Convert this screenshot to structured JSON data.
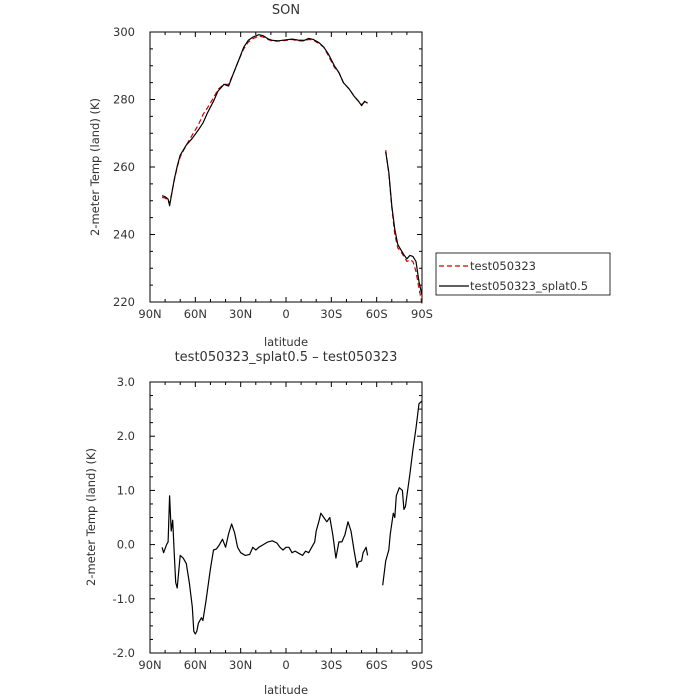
{
  "chart_data": [
    {
      "type": "line",
      "title": "SON",
      "xlabel": "latitude",
      "ylabel": "2-meter Temp (land) (K)",
      "ylim": [
        220,
        300
      ],
      "xlim": [
        90,
        -90
      ],
      "x_tick_values": [
        90,
        60,
        30,
        0,
        -30,
        -60,
        -90
      ],
      "x_tick_labels": [
        "90N",
        "60N",
        "30N",
        "0",
        "30S",
        "60S",
        "90S"
      ],
      "y_tick_values": [
        220,
        240,
        260,
        280,
        300
      ],
      "y_tick_labels": [
        "220",
        "240",
        "260",
        "280",
        "300"
      ],
      "legend": {
        "placement": "right",
        "entries": [
          "test050323",
          "test050323_splat0.5"
        ]
      },
      "series": [
        {
          "name": "test050323",
          "color": "#cc0000",
          "dash": "dashed",
          "segments": [
            [
              [
                82,
                251.0
              ],
              [
                80,
                250.8
              ],
              [
                78,
                250.0
              ],
              [
                77,
                249.2
              ],
              [
                76,
                251.5
              ],
              [
                74,
                256.0
              ],
              [
                72,
                260.0
              ],
              [
                70,
                263.0
              ],
              [
                66,
                266.5
              ],
              [
                62,
                269.5
              ],
              [
                58,
                272.5
              ],
              [
                55,
                275.5
              ],
              [
                52,
                277.5
              ],
              [
                48,
                280.5
              ],
              [
                45,
                283.0
              ],
              [
                41,
                284.5
              ],
              [
                38,
                284.5
              ],
              [
                35,
                287.5
              ],
              [
                31,
                292.0
              ],
              [
                28,
                295.0
              ],
              [
                25,
                297.0
              ],
              [
                22,
                298.0
              ],
              [
                18,
                298.8
              ],
              [
                15,
                298.5
              ],
              [
                12,
                297.8
              ],
              [
                9,
                297.3
              ],
              [
                5,
                297.3
              ],
              [
                0,
                297.5
              ],
              [
                -4,
                297.8
              ],
              [
                -8,
                297.4
              ],
              [
                -12,
                297.3
              ],
              [
                -15,
                297.8
              ],
              [
                -18,
                297.6
              ],
              [
                -22,
                296.5
              ],
              [
                -25,
                295.5
              ],
              [
                -28,
                293.0
              ],
              [
                -32,
                289.5
              ],
              [
                -35,
                288.0
              ],
              [
                -38,
                285.0
              ],
              [
                -42,
                283.0
              ],
              [
                -45,
                281.0
              ],
              [
                -48,
                279.5
              ],
              [
                -50,
                278.5
              ],
              [
                -52,
                279.2
              ],
              [
                -54,
                279.0
              ]
            ],
            [
              [
                -66,
                265.0
              ],
              [
                -68,
                258.0
              ],
              [
                -70,
                248.0
              ],
              [
                -72,
                240.0
              ],
              [
                -74,
                236.0
              ],
              [
                -76,
                235.0
              ],
              [
                -78,
                233.5
              ],
              [
                -80,
                232.0
              ],
              [
                -82,
                232.5
              ],
              [
                -84,
                232.0
              ],
              [
                -86,
                229.0
              ],
              [
                -88,
                224.0
              ],
              [
                -90,
                219.5
              ]
            ]
          ]
        },
        {
          "name": "test050323_splat0.5",
          "color": "#000000",
          "dash": "solid",
          "segments": [
            [
              [
                82,
                251.5
              ],
              [
                80,
                251.2
              ],
              [
                78,
                250.5
              ],
              [
                77,
                248.5
              ],
              [
                76,
                251.2
              ],
              [
                74,
                256.2
              ],
              [
                72,
                260.2
              ],
              [
                70,
                263.5
              ],
              [
                66,
                266.5
              ],
              [
                62,
                268.5
              ],
              [
                58,
                271.0
              ],
              [
                55,
                273.0
              ],
              [
                52,
                276.0
              ],
              [
                48,
                279.5
              ],
              [
                45,
                282.5
              ],
              [
                41,
                284.5
              ],
              [
                38,
                284.0
              ],
              [
                35,
                287.5
              ],
              [
                31,
                292.0
              ],
              [
                28,
                295.5
              ],
              [
                25,
                297.5
              ],
              [
                22,
                298.5
              ],
              [
                18,
                299.2
              ],
              [
                15,
                298.9
              ],
              [
                12,
                298.0
              ],
              [
                9,
                297.5
              ],
              [
                5,
                297.4
              ],
              [
                0,
                297.7
              ],
              [
                -4,
                297.9
              ],
              [
                -8,
                297.6
              ],
              [
                -12,
                297.5
              ],
              [
                -15,
                298.1
              ],
              [
                -18,
                297.8
              ],
              [
                -22,
                296.8
              ],
              [
                -25,
                295.5
              ],
              [
                -28,
                293.5
              ],
              [
                -32,
                290.0
              ],
              [
                -35,
                288.0
              ],
              [
                -38,
                285.0
              ],
              [
                -42,
                283.0
              ],
              [
                -45,
                281.0
              ],
              [
                -48,
                279.5
              ],
              [
                -50,
                278.2
              ],
              [
                -52,
                279.5
              ],
              [
                -54,
                278.9
              ]
            ],
            [
              [
                -66,
                264.5
              ],
              [
                -68,
                258.5
              ],
              [
                -70,
                248.5
              ],
              [
                -72,
                241.5
              ],
              [
                -74,
                237.0
              ],
              [
                -76,
                235.5
              ],
              [
                -78,
                234.0
              ],
              [
                -80,
                232.8
              ],
              [
                -82,
                233.8
              ],
              [
                -84,
                233.5
              ],
              [
                -86,
                232.0
              ],
              [
                -88,
                226.0
              ],
              [
                -90,
                222.0
              ]
            ]
          ]
        }
      ]
    },
    {
      "type": "line",
      "title": "test050323_splat0.5 – test050323",
      "xlabel": "latitude",
      "ylabel": "2-meter Temp (land) (K)",
      "ylim": [
        -2.0,
        3.0
      ],
      "xlim": [
        90,
        -90
      ],
      "x_tick_values": [
        90,
        60,
        30,
        0,
        -30,
        -60,
        -90
      ],
      "x_tick_labels": [
        "90N",
        "60N",
        "30N",
        "0",
        "30S",
        "60S",
        "90S"
      ],
      "y_tick_values": [
        -2.0,
        -1.0,
        0.0,
        1.0,
        2.0,
        3.0
      ],
      "y_tick_labels": [
        "-2.0",
        "-1.0",
        "0.0",
        "1.0",
        "2.0",
        "3.0"
      ],
      "series": [
        {
          "color": "#000000",
          "dash": "solid",
          "segments": [
            [
              [
                82,
                -0.05
              ],
              [
                81,
                -0.15
              ],
              [
                79,
                0.0
              ],
              [
                78,
                0.05
              ],
              [
                77,
                0.9
              ],
              [
                76,
                0.25
              ],
              [
                75,
                0.45
              ],
              [
                74,
                -0.15
              ],
              [
                73,
                -0.7
              ],
              [
                72,
                -0.8
              ],
              [
                71,
                -0.5
              ],
              [
                70,
                -0.2
              ],
              [
                68,
                -0.25
              ],
              [
                66,
                -0.35
              ],
              [
                64,
                -0.7
              ],
              [
                62,
                -1.15
              ],
              [
                61,
                -1.6
              ],
              [
                60,
                -1.65
              ],
              [
                59,
                -1.6
              ],
              [
                58,
                -1.45
              ],
              [
                56,
                -1.35
              ],
              [
                55,
                -1.4
              ],
              [
                53,
                -1.05
              ],
              [
                50,
                -0.45
              ],
              [
                48,
                -0.1
              ],
              [
                46,
                -0.08
              ],
              [
                44,
                0.0
              ],
              [
                42,
                0.1
              ],
              [
                40,
                -0.05
              ],
              [
                38,
                0.2
              ],
              [
                36,
                0.38
              ],
              [
                34,
                0.22
              ],
              [
                32,
                -0.05
              ],
              [
                30,
                -0.15
              ],
              [
                27,
                -0.2
              ],
              [
                24,
                -0.18
              ],
              [
                22,
                -0.05
              ],
              [
                20,
                -0.1
              ],
              [
                18,
                -0.05
              ],
              [
                15,
                0.0
              ],
              [
                12,
                0.05
              ],
              [
                9,
                0.07
              ],
              [
                6,
                0.03
              ],
              [
                4,
                -0.05
              ],
              [
                2,
                -0.1
              ],
              [
                0,
                -0.05
              ],
              [
                -2,
                -0.05
              ],
              [
                -4,
                -0.15
              ],
              [
                -6,
                -0.12
              ],
              [
                -9,
                -0.17
              ],
              [
                -11,
                -0.2
              ],
              [
                -13,
                -0.12
              ],
              [
                -15,
                -0.15
              ],
              [
                -17,
                -0.05
              ],
              [
                -19,
                0.05
              ],
              [
                -20,
                0.25
              ],
              [
                -22,
                0.45
              ],
              [
                -23,
                0.58
              ],
              [
                -25,
                0.5
              ],
              [
                -27,
                0.42
              ],
              [
                -29,
                0.5
              ],
              [
                -31,
                0.18
              ],
              [
                -33,
                -0.25
              ],
              [
                -35,
                0.05
              ],
              [
                -37,
                0.05
              ],
              [
                -39,
                0.18
              ],
              [
                -41,
                0.42
              ],
              [
                -43,
                0.25
              ],
              [
                -45,
                -0.1
              ],
              [
                -47,
                -0.42
              ],
              [
                -48,
                -0.32
              ],
              [
                -50,
                -0.3
              ],
              [
                -51,
                -0.15
              ],
              [
                -53,
                -0.05
              ],
              [
                -54,
                -0.2
              ]
            ],
            [
              [
                -64,
                -0.75
              ],
              [
                -66,
                -0.3
              ],
              [
                -68,
                -0.1
              ],
              [
                -69,
                0.2
              ],
              [
                -71,
                0.58
              ],
              [
                -72,
                0.5
              ],
              [
                -73,
                0.9
              ],
              [
                -75,
                1.05
              ],
              [
                -77,
                1.0
              ],
              [
                -78,
                0.65
              ],
              [
                -79,
                0.7
              ],
              [
                -80,
                0.9
              ],
              [
                -82,
                1.3
              ],
              [
                -84,
                1.75
              ],
              [
                -86,
                2.15
              ],
              [
                -88,
                2.6
              ],
              [
                -90,
                2.65
              ]
            ]
          ]
        }
      ]
    }
  ]
}
